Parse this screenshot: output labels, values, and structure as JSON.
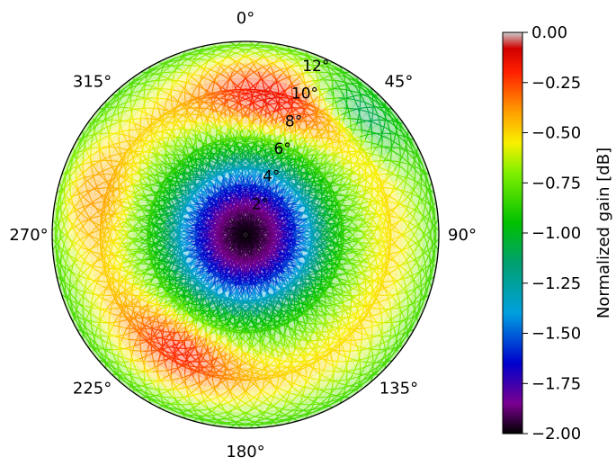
{
  "chart_data": {
    "type": "polar-heatmap",
    "title": "",
    "theta_ticks": [
      {
        "angle": 0,
        "label": "0°"
      },
      {
        "angle": 45,
        "label": "45°"
      },
      {
        "angle": 90,
        "label": "90°"
      },
      {
        "angle": 135,
        "label": "135°"
      },
      {
        "angle": 180,
        "label": "180°"
      },
      {
        "angle": 225,
        "label": "225°"
      },
      {
        "angle": 270,
        "label": "270°"
      },
      {
        "angle": 315,
        "label": "315°"
      }
    ],
    "theta_direction": "clockwise",
    "theta_zero": "top",
    "r_range": [
      0,
      13
    ],
    "r_ticks": [
      {
        "value": 2,
        "label": "2°"
      },
      {
        "value": 4,
        "label": "4°"
      },
      {
        "value": 6,
        "label": "6°"
      },
      {
        "value": 8,
        "label": "8°"
      },
      {
        "value": 10,
        "label": "10°"
      },
      {
        "value": 12,
        "label": "12°"
      }
    ],
    "r_label_angle": 22,
    "colorbar": {
      "label": "Normalized gain [dB]",
      "range": [
        -2.0,
        0.0
      ],
      "ticks": [
        {
          "value": 0.0,
          "label": "0.00"
        },
        {
          "value": -0.25,
          "label": "−0.25"
        },
        {
          "value": -0.5,
          "label": "−0.50"
        },
        {
          "value": -0.75,
          "label": "−0.75"
        },
        {
          "value": -1.0,
          "label": "−1.00"
        },
        {
          "value": -1.25,
          "label": "−1.25"
        },
        {
          "value": -1.5,
          "label": "−1.50"
        },
        {
          "value": -1.75,
          "label": "−1.75"
        },
        {
          "value": -2.0,
          "label": "−2.00"
        }
      ],
      "colormap": [
        {
          "v": -2.0,
          "color": "#000000"
        },
        {
          "v": -1.85,
          "color": "#7a0090"
        },
        {
          "v": -1.65,
          "color": "#0000cc"
        },
        {
          "v": -1.4,
          "color": "#00a0e0"
        },
        {
          "v": -1.15,
          "color": "#00a070"
        },
        {
          "v": -0.95,
          "color": "#00c000"
        },
        {
          "v": -0.7,
          "color": "#80f000"
        },
        {
          "v": -0.55,
          "color": "#f8f000"
        },
        {
          "v": -0.4,
          "color": "#ffa000"
        },
        {
          "v": -0.2,
          "color": "#ff2000"
        },
        {
          "v": -0.08,
          "color": "#d00000"
        },
        {
          "v": 0.0,
          "color": "#cccccc"
        }
      ]
    },
    "gain_profile": [
      {
        "r": 0.0,
        "gain": -2.0
      },
      {
        "r": 1.0,
        "gain": -1.95
      },
      {
        "r": 2.0,
        "gain": -1.85
      },
      {
        "r": 3.0,
        "gain": -1.65
      },
      {
        "r": 4.2,
        "gain": -1.4
      },
      {
        "r": 5.5,
        "gain": -1.05
      },
      {
        "r": 7.0,
        "gain": -0.8
      },
      {
        "r": 8.5,
        "gain": -0.6
      },
      {
        "r": 10.0,
        "gain": -0.5
      },
      {
        "r": 11.5,
        "gain": -0.65
      },
      {
        "r": 13.0,
        "gain": -0.85
      }
    ],
    "hot_regions": [
      {
        "theta": 10,
        "r": 9.5,
        "width_deg": 30,
        "width_r": 2.2,
        "gain": -0.15
      },
      {
        "theta": 210,
        "r": 9.0,
        "width_deg": 28,
        "width_r": 2.0,
        "gain": -0.2
      },
      {
        "theta": 285,
        "r": 10.5,
        "width_deg": 20,
        "width_r": 2.0,
        "gain": -0.4
      },
      {
        "theta": 45,
        "r": 11.5,
        "width_deg": 18,
        "width_r": 1.5,
        "gain": -1.1
      }
    ],
    "legend": "none",
    "grid": false
  }
}
